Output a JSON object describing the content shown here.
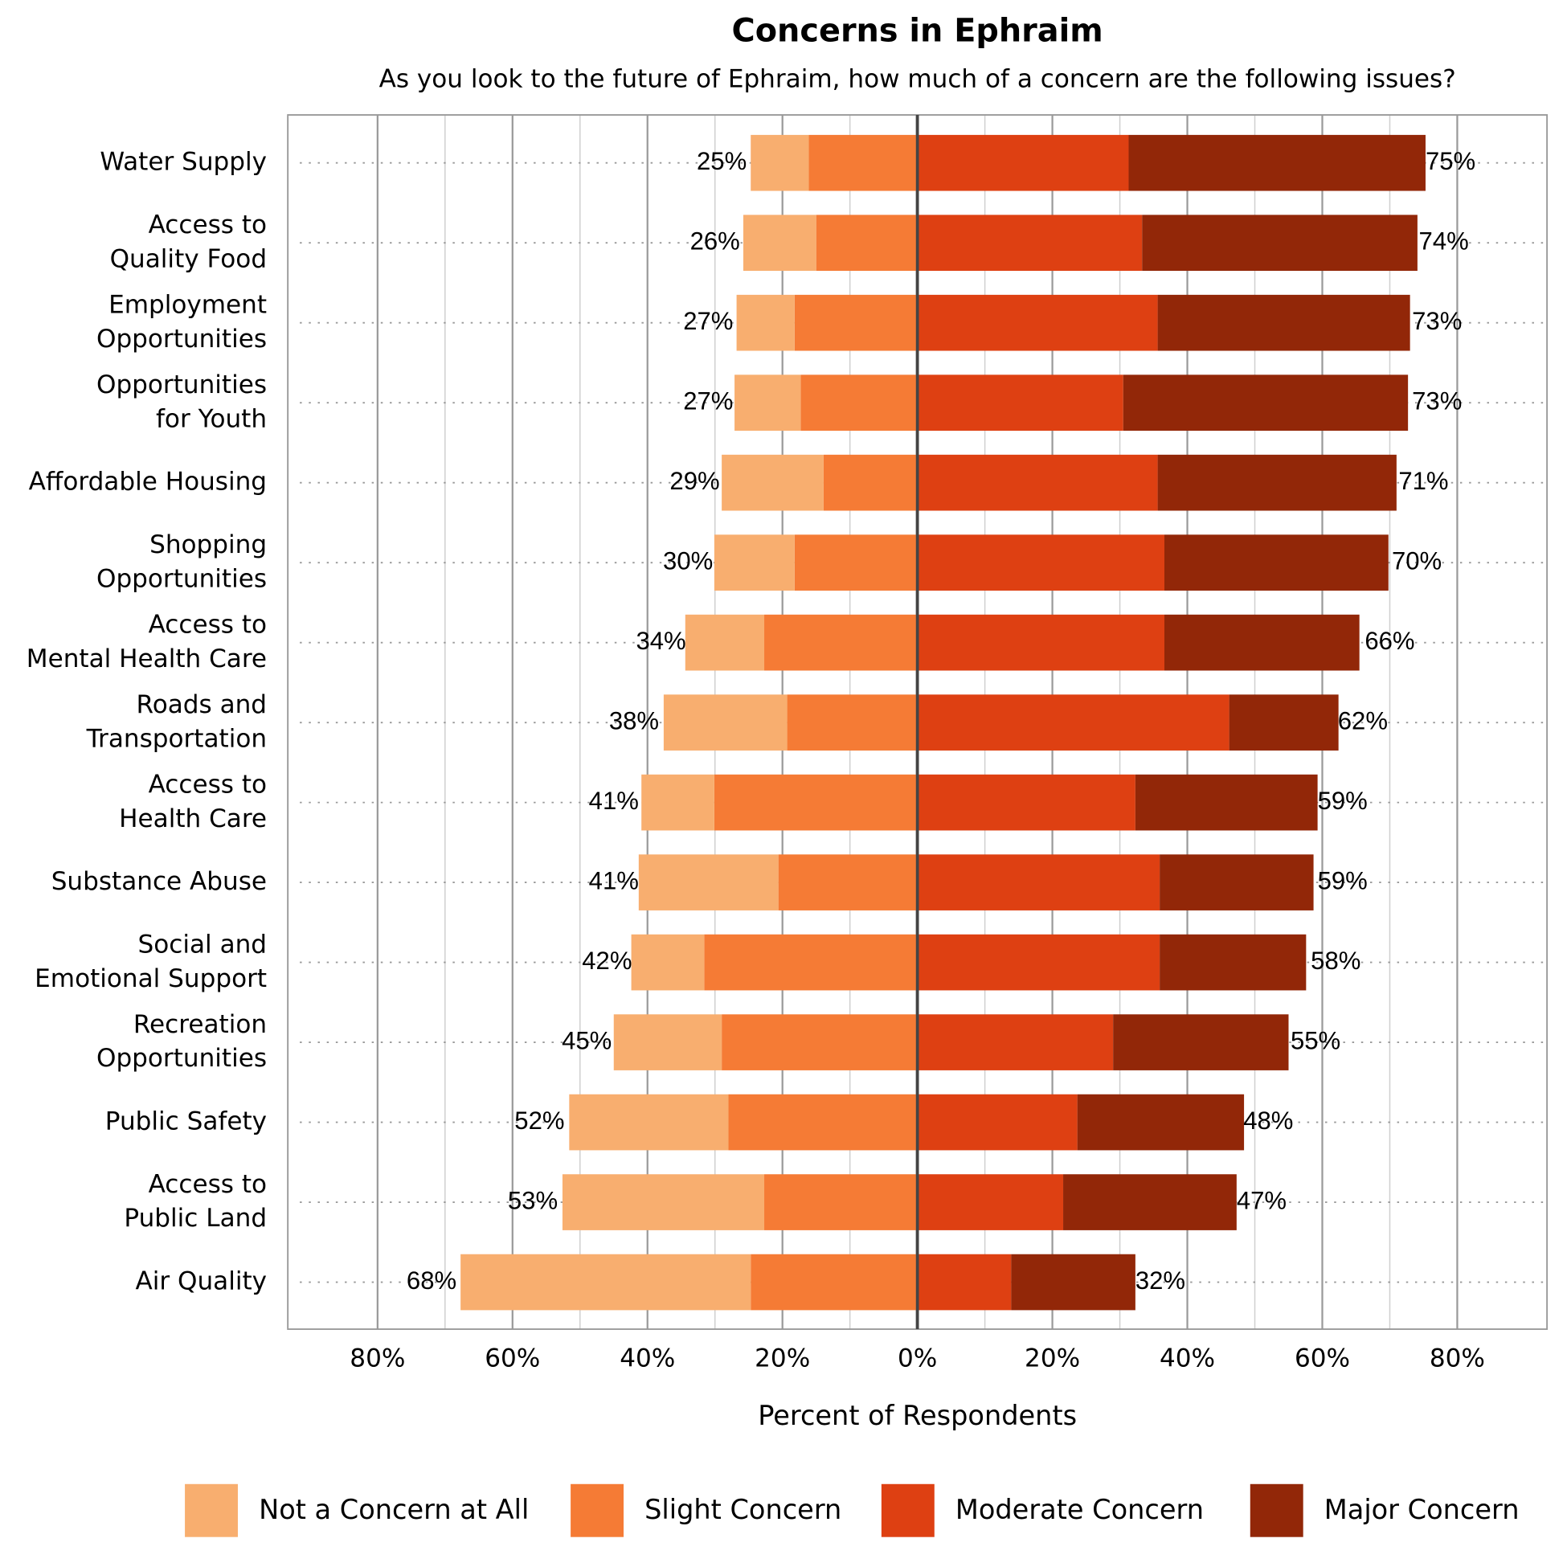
{
  "chart_data": {
    "type": "diverging-bar",
    "title": "Concerns in Ephraim",
    "subtitle": "As you look to the future of Ephraim, how much of a concern are the following issues?",
    "x_label": "Percent of Respondents",
    "categories": [
      [
        "Water Supply"
      ],
      [
        "Access to",
        "Quality Food"
      ],
      [
        "Employment",
        "Opportunities"
      ],
      [
        "Opportunities",
        "for Youth"
      ],
      [
        "Affordable Housing"
      ],
      [
        "Shopping",
        "Opportunities"
      ],
      [
        "Access to",
        "Mental Health Care"
      ],
      [
        "Roads and",
        "Transportation"
      ],
      [
        "Access to",
        "Health Care"
      ],
      [
        "Substance Abuse"
      ],
      [
        "Social and",
        "Emotional Support"
      ],
      [
        "Recreation",
        "Opportunities"
      ],
      [
        "Public Safety"
      ],
      [
        "Access to",
        "Public Land"
      ],
      [
        "Air Quality"
      ]
    ],
    "series": [
      {
        "name": "Not a Concern at All",
        "color": "#f8ae6f",
        "side": "left",
        "values": [
          8.6,
          10.8,
          8.6,
          9.8,
          15.1,
          11.9,
          11.7,
          18.3,
          10.8,
          20.7,
          10.8,
          16.0,
          23.6,
          29.9,
          43.0
        ]
      },
      {
        "name": "Slight Concern",
        "color": "#f57b35",
        "side": "left",
        "values": [
          16.1,
          15.0,
          18.2,
          17.3,
          13.9,
          18.2,
          22.7,
          19.3,
          30.1,
          20.6,
          31.6,
          29.0,
          28.0,
          22.7,
          24.7
        ]
      },
      {
        "name": "Moderate Concern",
        "color": "#de4012",
        "side": "right",
        "values": [
          31.3,
          33.3,
          35.6,
          30.5,
          35.6,
          36.6,
          36.6,
          46.2,
          32.3,
          35.9,
          35.9,
          29.0,
          23.7,
          21.6,
          13.9
        ]
      },
      {
        "name": "Major Concern",
        "color": "#922708",
        "side": "right",
        "values": [
          44.0,
          40.8,
          37.4,
          42.2,
          35.4,
          33.2,
          28.9,
          16.2,
          27.0,
          22.8,
          21.7,
          26.0,
          24.7,
          25.7,
          18.4
        ]
      }
    ],
    "left_totals": {
      "values": [
        25,
        26,
        27,
        27,
        29,
        30,
        34,
        38,
        41,
        41,
        42,
        45,
        52,
        53,
        68
      ],
      "value_labels": [
        "25%",
        "26%",
        "27%",
        "27%",
        "29%",
        "30%",
        "34%",
        "38%",
        "41%",
        "41%",
        "42%",
        "45%",
        "52%",
        "53%",
        "68%"
      ]
    },
    "right_totals": {
      "values": [
        75,
        74,
        73,
        73,
        71,
        70,
        66,
        62,
        59,
        59,
        58,
        55,
        48,
        47,
        32
      ],
      "value_labels": [
        "75%",
        "74%",
        "73%",
        "73%",
        "71%",
        "70%",
        "66%",
        "62%",
        "59%",
        "59%",
        "58%",
        "55%",
        "48%",
        "47%",
        "32%"
      ]
    },
    "xlim": [
      -93.3,
      93.3
    ],
    "xticks": [
      {
        "value": -80,
        "label": "80%"
      },
      {
        "value": -60,
        "label": "60%"
      },
      {
        "value": -40,
        "label": "40%"
      },
      {
        "value": -20,
        "label": "20%"
      },
      {
        "value": 0,
        "label": "0%"
      },
      {
        "value": 20,
        "label": "20%"
      },
      {
        "value": 40,
        "label": "40%"
      },
      {
        "value": 60,
        "label": "60%"
      },
      {
        "value": 80,
        "label": "80%"
      }
    ],
    "minor_xticks": [
      -70,
      -50,
      -30,
      -10,
      10,
      30,
      50,
      70
    ],
    "grid": true,
    "legend": "bottom"
  }
}
